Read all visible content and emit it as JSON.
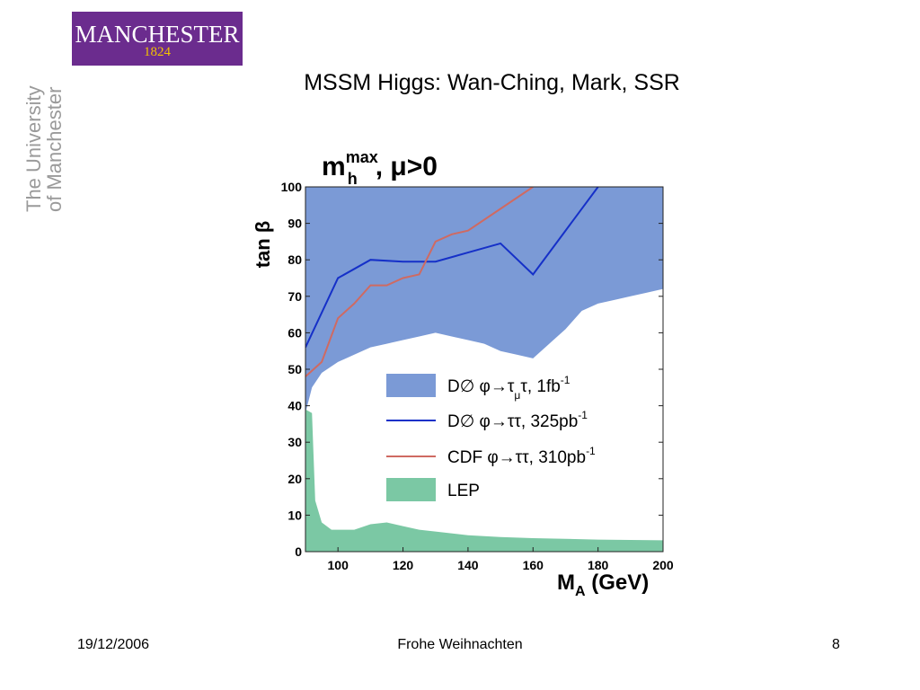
{
  "logo": {
    "name": "MANCHESTER",
    "year": "1824"
  },
  "university": {
    "line1": "The University",
    "line2": "of Manchester"
  },
  "slide": {
    "title": "MSSM Higgs: Wan-Ching, Mark, SSR"
  },
  "footer": {
    "date": "19/12/2006",
    "center": "Frohe Weihnachten",
    "page": "8"
  },
  "colors": {
    "excluded_fill": "#7b9ad6",
    "lep_fill": "#7bc8a4",
    "d0_line": "#1530c8",
    "cdf_line": "#cf6a62",
    "logo_bg": "#6b2c8e"
  },
  "chart_data": {
    "type": "line",
    "title_main": "m",
    "title_sup": "max",
    "title_sub": "h",
    "title_rest": ", μ>0",
    "xlabel_main": "M",
    "xlabel_sub": "A",
    "xlabel_rest": " (GeV)",
    "ylabel": "tan β",
    "xlim": [
      90,
      200
    ],
    "ylim": [
      0,
      100
    ],
    "x_ticks": [
      100,
      120,
      140,
      160,
      180,
      200
    ],
    "y_ticks": [
      0,
      10,
      20,
      30,
      40,
      50,
      60,
      70,
      80,
      90,
      100
    ],
    "legend_position": "center-right",
    "series": [
      {
        "name": "DØ φ→τμτ, 1fb-1",
        "legend_main": "D∅ φ→τ",
        "legend_sub": "μ",
        "legend_rest": "τ, 1fb",
        "legend_sup": "-1",
        "kind": "area",
        "boundary": [
          [
            90,
            38
          ],
          [
            92,
            45
          ],
          [
            95,
            49
          ],
          [
            100,
            52
          ],
          [
            105,
            54
          ],
          [
            110,
            56
          ],
          [
            115,
            57
          ],
          [
            120,
            58
          ],
          [
            125,
            59
          ],
          [
            130,
            60
          ],
          [
            135,
            59
          ],
          [
            140,
            58
          ],
          [
            145,
            57
          ],
          [
            150,
            55
          ],
          [
            155,
            54
          ],
          [
            160,
            53
          ],
          [
            165,
            57
          ],
          [
            170,
            61
          ],
          [
            175,
            66
          ],
          [
            180,
            68
          ],
          [
            185,
            69
          ],
          [
            190,
            70
          ],
          [
            195,
            71
          ],
          [
            200,
            72
          ]
        ]
      },
      {
        "name": "DØ φ→ττ, 325pb-1",
        "legend_main": "D∅ φ→ττ, 325pb",
        "legend_sup": "-1",
        "kind": "line",
        "points": [
          [
            90,
            56
          ],
          [
            100,
            75
          ],
          [
            110,
            80
          ],
          [
            120,
            79.5
          ],
          [
            130,
            79.5
          ],
          [
            140,
            82
          ],
          [
            150,
            84.5
          ],
          [
            160,
            76
          ],
          [
            170,
            88
          ],
          [
            180,
            100
          ]
        ]
      },
      {
        "name": "CDF φ→ττ, 310pb-1",
        "legend_main": "CDF φ→ττ, 310pb",
        "legend_sup": "-1",
        "kind": "line",
        "points": [
          [
            90,
            48
          ],
          [
            95,
            52
          ],
          [
            100,
            64
          ],
          [
            105,
            68
          ],
          [
            110,
            73
          ],
          [
            115,
            73
          ],
          [
            120,
            75
          ],
          [
            125,
            76
          ],
          [
            130,
            85
          ],
          [
            135,
            87
          ],
          [
            140,
            88
          ],
          [
            150,
            94
          ],
          [
            160,
            100
          ]
        ]
      },
      {
        "name": "LEP",
        "legend_main": "LEP",
        "kind": "area",
        "boundary": [
          [
            90,
            39
          ],
          [
            92,
            38
          ],
          [
            93,
            14
          ],
          [
            95,
            8
          ],
          [
            98,
            6
          ],
          [
            100,
            6
          ],
          [
            105,
            6
          ],
          [
            110,
            7.5
          ],
          [
            115,
            8
          ],
          [
            120,
            7
          ],
          [
            125,
            6
          ],
          [
            130,
            5.5
          ],
          [
            140,
            4.5
          ],
          [
            150,
            4
          ],
          [
            160,
            3.7
          ],
          [
            170,
            3.5
          ],
          [
            180,
            3.3
          ],
          [
            190,
            3.2
          ],
          [
            200,
            3.1
          ]
        ]
      }
    ]
  }
}
